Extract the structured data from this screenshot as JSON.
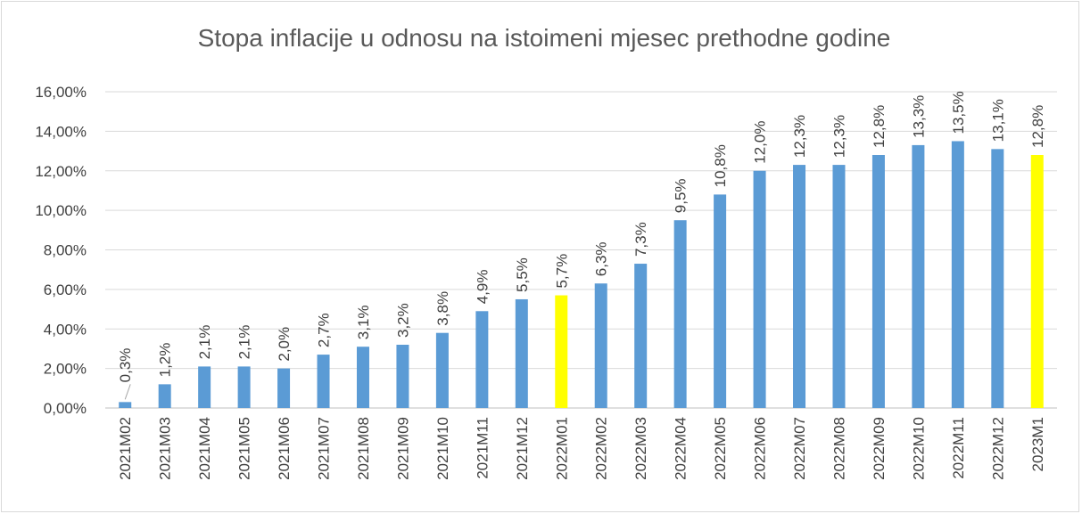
{
  "chart_data": {
    "type": "bar",
    "title": "Stopa inflacije u odnosu na istoimeni mjesec prethodne godine",
    "categories": [
      "2021M02",
      "2021M03",
      "2021M04",
      "2021M05",
      "2021M06",
      "2021M07",
      "2021M08",
      "2021M09",
      "2021M10",
      "2021M11",
      "2021M12",
      "2022M01",
      "2022M02",
      "2022M03",
      "2022M04",
      "2022M05",
      "2022M06",
      "2022M07",
      "2022M08",
      "2022M09",
      "2022M10",
      "2022M11",
      "2022M12",
      "2023M1"
    ],
    "values": [
      0.3,
      1.2,
      2.1,
      2.1,
      2.0,
      2.7,
      3.1,
      3.2,
      3.8,
      4.9,
      5.5,
      5.7,
      6.3,
      7.3,
      9.5,
      10.8,
      12.0,
      12.3,
      12.3,
      12.8,
      13.3,
      13.5,
      13.1,
      12.8
    ],
    "value_labels": [
      "0,3%",
      "1,2%",
      "2,1%",
      "2,1%",
      "2,0%",
      "2,7%",
      "3,1%",
      "3,2%",
      "3,8%",
      "4,9%",
      "5,5%",
      "5,7%",
      "6,3%",
      "7,3%",
      "9,5%",
      "10,8%",
      "12,0%",
      "12,3%",
      "12,3%",
      "12,8%",
      "13,3%",
      "13,5%",
      "13,1%",
      "12,8%"
    ],
    "colors": [
      "#5b9bd5",
      "#5b9bd5",
      "#5b9bd5",
      "#5b9bd5",
      "#5b9bd5",
      "#5b9bd5",
      "#5b9bd5",
      "#5b9bd5",
      "#5b9bd5",
      "#5b9bd5",
      "#5b9bd5",
      "#ffff00",
      "#5b9bd5",
      "#5b9bd5",
      "#5b9bd5",
      "#5b9bd5",
      "#5b9bd5",
      "#5b9bd5",
      "#5b9bd5",
      "#5b9bd5",
      "#5b9bd5",
      "#5b9bd5",
      "#5b9bd5",
      "#ffff00"
    ],
    "ylim": [
      0,
      16
    ],
    "yticks": [
      {
        "value": 0,
        "label": "0,00%"
      },
      {
        "value": 2,
        "label": "2,00%"
      },
      {
        "value": 4,
        "label": "4,00%"
      },
      {
        "value": 6,
        "label": "6,00%"
      },
      {
        "value": 8,
        "label": "8,00%"
      },
      {
        "value": 10,
        "label": "10,00%"
      },
      {
        "value": 12,
        "label": "12,00%"
      },
      {
        "value": 14,
        "label": "14,00%"
      },
      {
        "value": 16,
        "label": "16,00%"
      }
    ],
    "grid": true
  }
}
